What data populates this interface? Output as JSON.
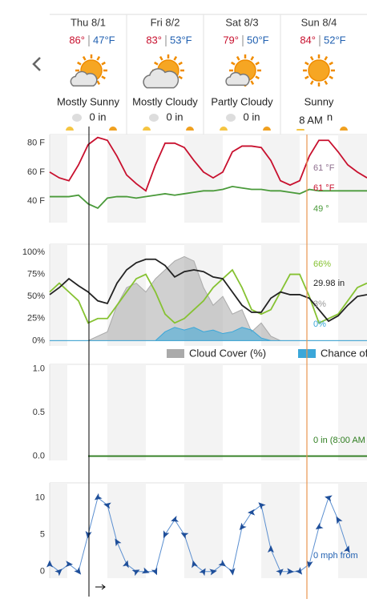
{
  "days": [
    {
      "label": "Thu 8/1",
      "high": "86°",
      "low": "47°F",
      "condition": "Mostly Sunny",
      "precip": "0 in"
    },
    {
      "label": "Fri 8/2",
      "high": "83°",
      "low": "53°F",
      "condition": "Mostly Cloudy",
      "precip": "0 in"
    },
    {
      "label": "Sat 8/3",
      "high": "79°",
      "low": "50°F",
      "condition": "Partly Cloudy",
      "precip": "0 in"
    },
    {
      "label": "Sun 8/4",
      "high": "84°",
      "low": "52°F",
      "condition": "Sunny",
      "precip": "in"
    }
  ],
  "cursor_label": "8 AM",
  "chart_data": [
    {
      "type": "line",
      "ylim": [
        25,
        86
      ],
      "yticks": [
        {
          "value": 80,
          "label": "80 F"
        },
        {
          "value": 60,
          "label": "60 F"
        },
        {
          "value": 40,
          "label": "40 F"
        }
      ],
      "series": [
        {
          "color": "#c8102e",
          "values": [
            60,
            56,
            54,
            65,
            79,
            84,
            82,
            71,
            58,
            52,
            47,
            65,
            80,
            80,
            77,
            68,
            60,
            56,
            60,
            74,
            78,
            78,
            77,
            68,
            54,
            51,
            54,
            71,
            82,
            82,
            74,
            65,
            60,
            56
          ]
        },
        {
          "color": "#4a9a3a",
          "values": [
            43,
            43,
            43,
            44,
            38,
            35,
            42,
            43,
            43,
            42,
            43,
            44,
            45,
            44,
            45,
            46,
            47,
            47,
            48,
            50,
            49,
            48,
            48,
            47,
            47,
            46,
            45,
            48,
            47,
            47,
            47,
            47,
            47,
            47
          ]
        }
      ],
      "annotations": [
        {
          "text": "61 °F",
          "color": "#8e6f8e"
        },
        {
          "text": "61 °F",
          "color": "#c8102e"
        },
        {
          "text": "49 °",
          "color": "#4a9a3a"
        }
      ]
    },
    {
      "type": "line",
      "ylim": [
        -6,
        109
      ],
      "legend": "bottom",
      "yticks": [
        {
          "value": 100,
          "label": "100%"
        },
        {
          "value": 75,
          "label": "75%"
        },
        {
          "value": 50,
          "label": "50%"
        },
        {
          "value": 25,
          "label": "25%"
        },
        {
          "value": 0,
          "label": "0%"
        }
      ],
      "series": [
        {
          "name": "Cloud Cover (%)",
          "color": "#aaaaaa",
          "fill": true,
          "values": [
            0,
            0,
            0,
            0,
            0,
            5,
            10,
            40,
            60,
            65,
            55,
            70,
            80,
            90,
            95,
            90,
            60,
            40,
            50,
            30,
            35,
            10,
            20,
            5,
            0,
            0,
            0,
            0,
            0,
            0,
            0,
            0,
            0,
            0
          ]
        },
        {
          "name": "Chance of Precipitation (%)",
          "color": "#3ba7d9",
          "fill": true,
          "values": [
            0,
            0,
            0,
            0,
            0,
            0,
            0,
            0,
            0,
            0,
            0,
            0,
            10,
            15,
            12,
            15,
            10,
            12,
            8,
            10,
            15,
            12,
            3,
            0,
            0,
            0,
            0,
            0,
            0,
            0,
            0,
            0,
            0,
            0
          ]
        },
        {
          "color": "#86c232",
          "values": [
            55,
            65,
            55,
            45,
            20,
            25,
            25,
            40,
            55,
            70,
            75,
            55,
            30,
            20,
            25,
            35,
            45,
            60,
            70,
            80,
            60,
            35,
            30,
            35,
            55,
            75,
            75,
            50,
            20,
            25,
            30,
            45,
            60,
            65
          ]
        },
        {
          "color": "#222222",
          "values": [
            52,
            60,
            70,
            62,
            55,
            45,
            42,
            65,
            80,
            88,
            92,
            92,
            85,
            72,
            78,
            80,
            78,
            72,
            70,
            55,
            40,
            32,
            32,
            48,
            55,
            52,
            52,
            48,
            35,
            22,
            28,
            40,
            50,
            52
          ]
        }
      ],
      "annotations": [
        {
          "text": "66%",
          "color": "#86c232"
        },
        {
          "text": "29.98 in",
          "color": "#222222"
        },
        {
          "text": "3%",
          "color": "#999999"
        },
        {
          "text": "0%",
          "color": "#3ba7d9"
        }
      ]
    },
    {
      "type": "line",
      "ylim": [
        -0.05,
        1.05
      ],
      "yticks": [
        {
          "value": 1,
          "label": "1.0"
        },
        {
          "value": 0.5,
          "label": "0.5"
        },
        {
          "value": 0,
          "label": "0.0"
        }
      ],
      "series": [
        {
          "color": "#2e7d1f",
          "values": [
            null,
            null,
            null,
            null,
            0,
            0,
            0,
            0,
            0,
            0,
            0,
            0,
            0,
            0,
            0,
            0,
            0,
            0,
            0,
            0,
            0,
            0,
            0,
            0,
            0,
            0,
            0,
            0,
            0,
            0,
            0,
            0,
            0,
            0
          ]
        }
      ],
      "annotations": [
        {
          "text": "0 in (8:00 AM",
          "color": "#2e7d1f"
        }
      ]
    },
    {
      "type": "line",
      "ylim": [
        -0.9,
        12
      ],
      "yticks": [
        10,
        5,
        0
      ],
      "series": [
        {
          "color": "#5b8fd0",
          "marker": "arrow",
          "values": [
            1,
            0,
            1,
            0,
            5,
            10,
            9,
            4,
            1,
            0,
            0,
            0,
            5,
            7,
            5,
            1,
            0,
            0,
            1,
            0,
            6,
            8,
            9,
            3,
            0,
            0,
            0,
            1,
            6,
            10,
            7,
            3,
            null,
            null
          ]
        }
      ],
      "annotations": [
        {
          "text": "0 mph from",
          "color": "#1f5fb0"
        }
      ]
    }
  ]
}
